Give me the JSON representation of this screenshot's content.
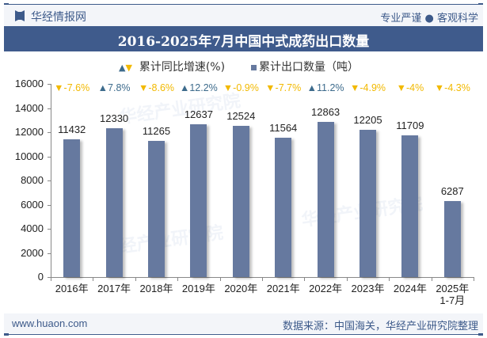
{
  "header": {
    "brand": "华经情报网",
    "slogan": "专业严谨 ● 客观科学"
  },
  "title": "2016-2025年7月中国中式成药出口数量",
  "legend": {
    "growth_label": "累计同比增速(%)",
    "quantity_label": "累计出口数量（吨）"
  },
  "colors": {
    "bar": "#66799f",
    "up": "#3d6b8c",
    "down": "#f2b900",
    "title_bg": "#3f5b8c"
  },
  "footer": {
    "url": "www.huaon.com",
    "source": "数据来源：中国海关，华经产业研究院整理"
  },
  "chart_data": {
    "type": "bar",
    "title": "2016-2025年7月中国中式成药出口数量",
    "xlabel": "",
    "ylabel": "",
    "ylim": [
      0,
      16000
    ],
    "yticks": [
      0,
      2000,
      4000,
      6000,
      8000,
      10000,
      12000,
      14000,
      16000
    ],
    "categories": [
      "2016年",
      "2017年",
      "2018年",
      "2019年",
      "2020年",
      "2021年",
      "2022年",
      "2023年",
      "2024年",
      "2025年\n1-7月"
    ],
    "series": [
      {
        "name": "累计出口数量（吨）",
        "values": [
          11432,
          12330,
          11265,
          12637,
          12524,
          11564,
          12863,
          12205,
          11709,
          6287
        ]
      },
      {
        "name": "累计同比增速(%)",
        "values": [
          -7.6,
          7.8,
          -8.6,
          12.2,
          -0.9,
          -7.7,
          11.2,
          -4.9,
          -4,
          -4.3
        ]
      }
    ],
    "growth_labels": [
      "-7.6%",
      "7.8%",
      "-8.6%",
      "12.2%",
      "-0.9%",
      "-7.7%",
      "11.2%",
      "-4.9%",
      "-4%",
      "-4.3%"
    ],
    "legend_position": "top",
    "grid": false
  }
}
